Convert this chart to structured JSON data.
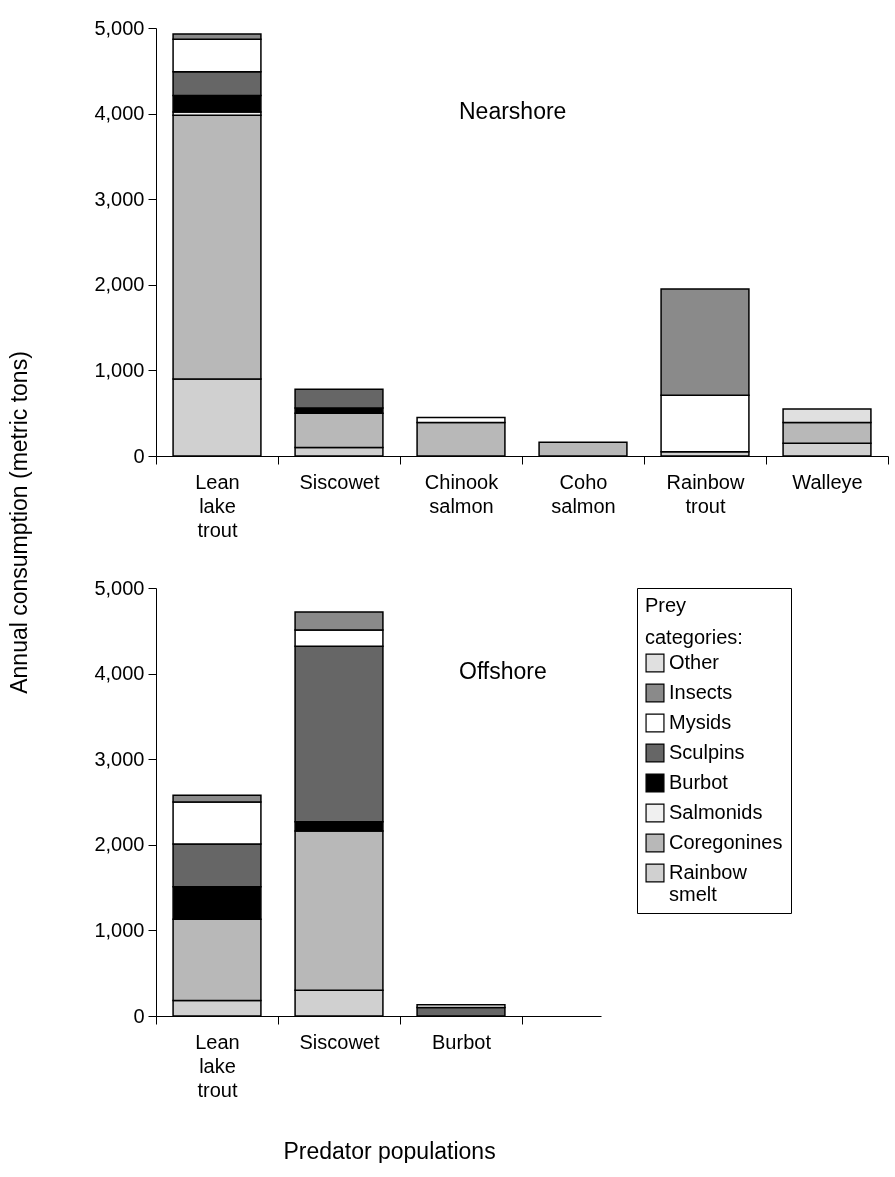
{
  "chart_data": [
    {
      "type": "bar",
      "stacked": true,
      "ylabel": "Annual consumption (metric tons)",
      "annotations": [
        "Nearshore"
      ],
      "categories": [
        "Lean lake trout",
        "Siscowet",
        "Chinook salmon",
        "Coho salmon",
        "Rainbow trout",
        "Walleye"
      ],
      "ylim": [
        0,
        5000
      ],
      "yticks": [
        {
          "value": 0,
          "label": "0"
        },
        {
          "value": 1000,
          "label": "1,000"
        },
        {
          "value": 2000,
          "label": "2,000"
        },
        {
          "value": 3000,
          "label": "3,000"
        },
        {
          "value": 4000,
          "label": "4,000"
        },
        {
          "value": 5000,
          "label": "5,000"
        }
      ],
      "series": [
        {
          "color": "#d0d0d0",
          "values": [
            900,
            100,
            null,
            null,
            50,
            150
          ]
        },
        {
          "color": "#b8b8b8",
          "values": [
            3080,
            400,
            390,
            160,
            null,
            240
          ]
        },
        {
          "color": "#f0f0f0",
          "values": [
            40,
            null,
            null,
            null,
            null,
            null
          ]
        },
        {
          "color": "#000000",
          "values": [
            190,
            60,
            null,
            null,
            null,
            null
          ]
        },
        {
          "color": "#666666",
          "values": [
            280,
            220,
            null,
            null,
            null,
            null
          ]
        },
        {
          "color": "#ffffff",
          "values": [
            380,
            null,
            60,
            null,
            660,
            null
          ]
        },
        {
          "color": "#8a8a8a",
          "values": [
            60,
            null,
            null,
            null,
            1240,
            null
          ]
        },
        {
          "color": "#e0e0e0",
          "values": [
            null,
            null,
            null,
            null,
            null,
            160
          ]
        }
      ]
    },
    {
      "type": "bar",
      "stacked": true,
      "xlabel": "Predator populations",
      "annotations": [
        "Offshore"
      ],
      "legend": "right",
      "legend_title": "Prey categories:",
      "categories": [
        "Lean lake trout",
        "Siscowet",
        "Burbot"
      ],
      "ylim": [
        0,
        5000
      ],
      "yticks": [
        {
          "value": 0,
          "label": "0"
        },
        {
          "value": 1000,
          "label": "1,000"
        },
        {
          "value": 2000,
          "label": "2,000"
        },
        {
          "value": 3000,
          "label": "3,000"
        },
        {
          "value": 4000,
          "label": "4,000"
        },
        {
          "value": 5000,
          "label": "5,000"
        }
      ],
      "series": [
        {
          "name": "Rainbow smelt",
          "color": "#d0d0d0",
          "values": [
            180,
            300,
            null
          ]
        },
        {
          "name": "Coregonines",
          "color": "#b8b8b8",
          "values": [
            950,
            1860,
            null
          ]
        },
        {
          "name": "Salmonids",
          "color": "#f0f0f0",
          "values": [
            null,
            null,
            null
          ]
        },
        {
          "name": "Burbot",
          "color": "#000000",
          "values": [
            380,
            110,
            null
          ]
        },
        {
          "name": "Sculpins",
          "color": "#666666",
          "values": [
            500,
            2050,
            100
          ]
        },
        {
          "name": "Mysids",
          "color": "#ffffff",
          "values": [
            490,
            190,
            30
          ]
        },
        {
          "name": "Insects",
          "color": "#8a8a8a",
          "values": [
            80,
            210,
            null
          ]
        },
        {
          "name": "Other",
          "color": "#e0e0e0",
          "values": [
            null,
            null,
            null
          ]
        }
      ]
    }
  ]
}
